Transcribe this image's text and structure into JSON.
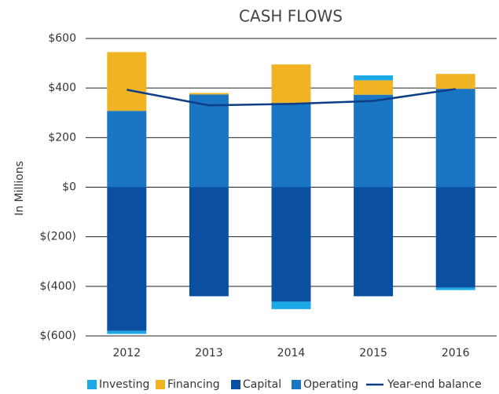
{
  "chart_data": {
    "type": "bar",
    "stacked": true,
    "title": "CASH FLOWS",
    "y_label": "In Millions",
    "categories": [
      "2012",
      "2013",
      "2014",
      "2015",
      "2016"
    ],
    "series": [
      {
        "name": "Investing",
        "color": "#1ca9e6",
        "values": [
          -12,
          0,
          -30,
          20,
          -10
        ]
      },
      {
        "name": "Financing",
        "color": "#f0b323",
        "values": [
          237,
          6,
          155,
          58,
          60
        ]
      },
      {
        "name": "Capital",
        "color": "#0b4fa0",
        "values": [
          -580,
          -440,
          -462,
          -440,
          -405
        ]
      },
      {
        "name": "Operating",
        "color": "#1a75c2",
        "values": [
          308,
          374,
          340,
          373,
          397
        ]
      },
      {
        "name": "Year-end balance",
        "type": "line",
        "color": "#0c3d87",
        "values": [
          393,
          330,
          336,
          348,
          396
        ]
      }
    ],
    "ylim": [
      -600,
      600
    ],
    "yticks": [
      {
        "value": -600,
        "label": "$(600)"
      },
      {
        "value": -400,
        "label": "$(400)"
      },
      {
        "value": -200,
        "label": "$(200)"
      },
      {
        "value": 0,
        "label": "$0"
      },
      {
        "value": 200,
        "label": "$200"
      },
      {
        "value": 400,
        "label": "$400"
      },
      {
        "value": 600,
        "label": "$600"
      }
    ],
    "grid": true,
    "legend": "bottom"
  }
}
